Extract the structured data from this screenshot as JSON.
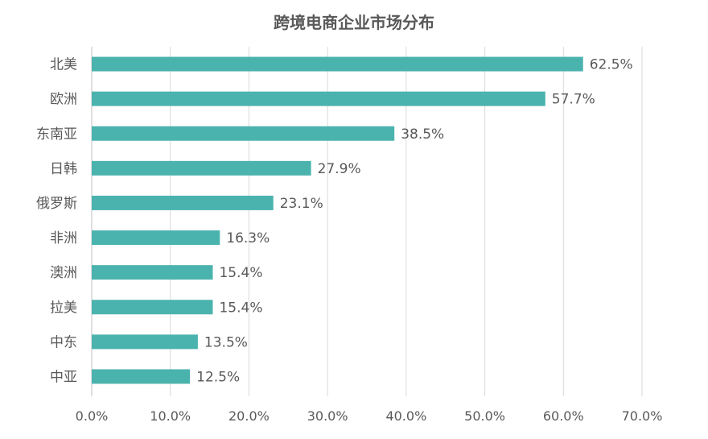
{
  "chart_data": {
    "type": "bar",
    "orientation": "horizontal",
    "title": "跨境电商企业市场分布",
    "categories": [
      "北美",
      "欧洲",
      "东南亚",
      "日韩",
      "俄罗斯",
      "非洲",
      "澳洲",
      "拉美",
      "中东",
      "中亚"
    ],
    "values": [
      62.5,
      57.7,
      38.5,
      27.9,
      23.1,
      16.3,
      15.4,
      15.4,
      13.5,
      12.5
    ],
    "value_labels": [
      "62.5%",
      "57.7%",
      "38.5%",
      "27.9%",
      "23.1%",
      "16.3%",
      "15.4%",
      "15.4%",
      "13.5%",
      "12.5%"
    ],
    "x_ticks": [
      "0.0%",
      "10.0%",
      "20.0%",
      "30.0%",
      "40.0%",
      "50.0%",
      "60.0%",
      "70.0%"
    ],
    "xlim": [
      0,
      70
    ],
    "xlabel": "",
    "ylabel": "",
    "grid": "vertical",
    "legend": "none",
    "bar_color": "#4BB3AE"
  }
}
